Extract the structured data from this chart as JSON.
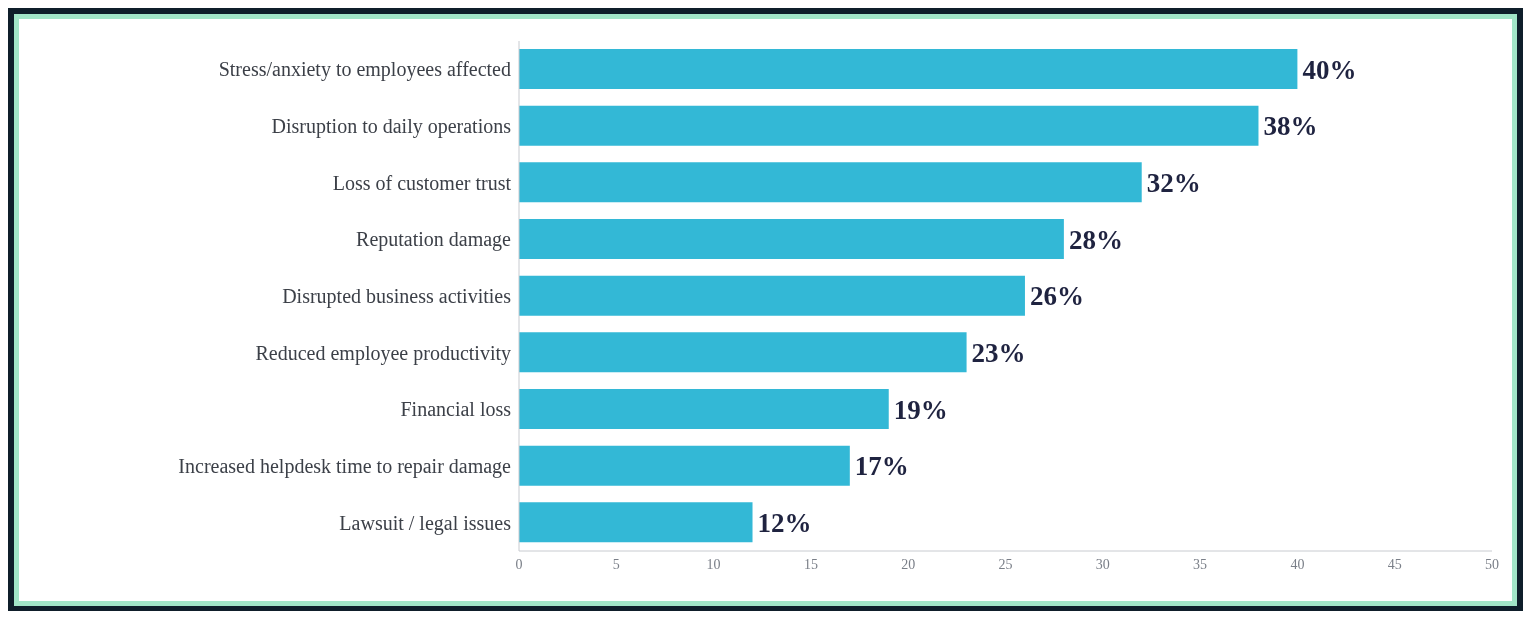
{
  "chart_data": {
    "type": "bar",
    "orientation": "horizontal",
    "categories": [
      "Stress/anxiety to employees affected",
      "Disruption to daily operations",
      "Loss of customer trust",
      "Reputation damage",
      "Disrupted business activities",
      "Reduced employee productivity",
      "Financial loss",
      "Increased helpdesk time to repair damage",
      "Lawsuit / legal issues"
    ],
    "values": [
      40,
      38,
      32,
      28,
      26,
      23,
      19,
      17,
      12
    ],
    "value_labels": [
      "40%",
      "38%",
      "32%",
      "28%",
      "26%",
      "23%",
      "19%",
      "17%",
      "12%"
    ],
    "color": "#33b8d6",
    "xlim": [
      0,
      50
    ],
    "xticks": [
      0,
      5,
      10,
      15,
      20,
      25,
      30,
      35,
      40,
      45,
      50
    ],
    "grid": false,
    "legend": false
  }
}
